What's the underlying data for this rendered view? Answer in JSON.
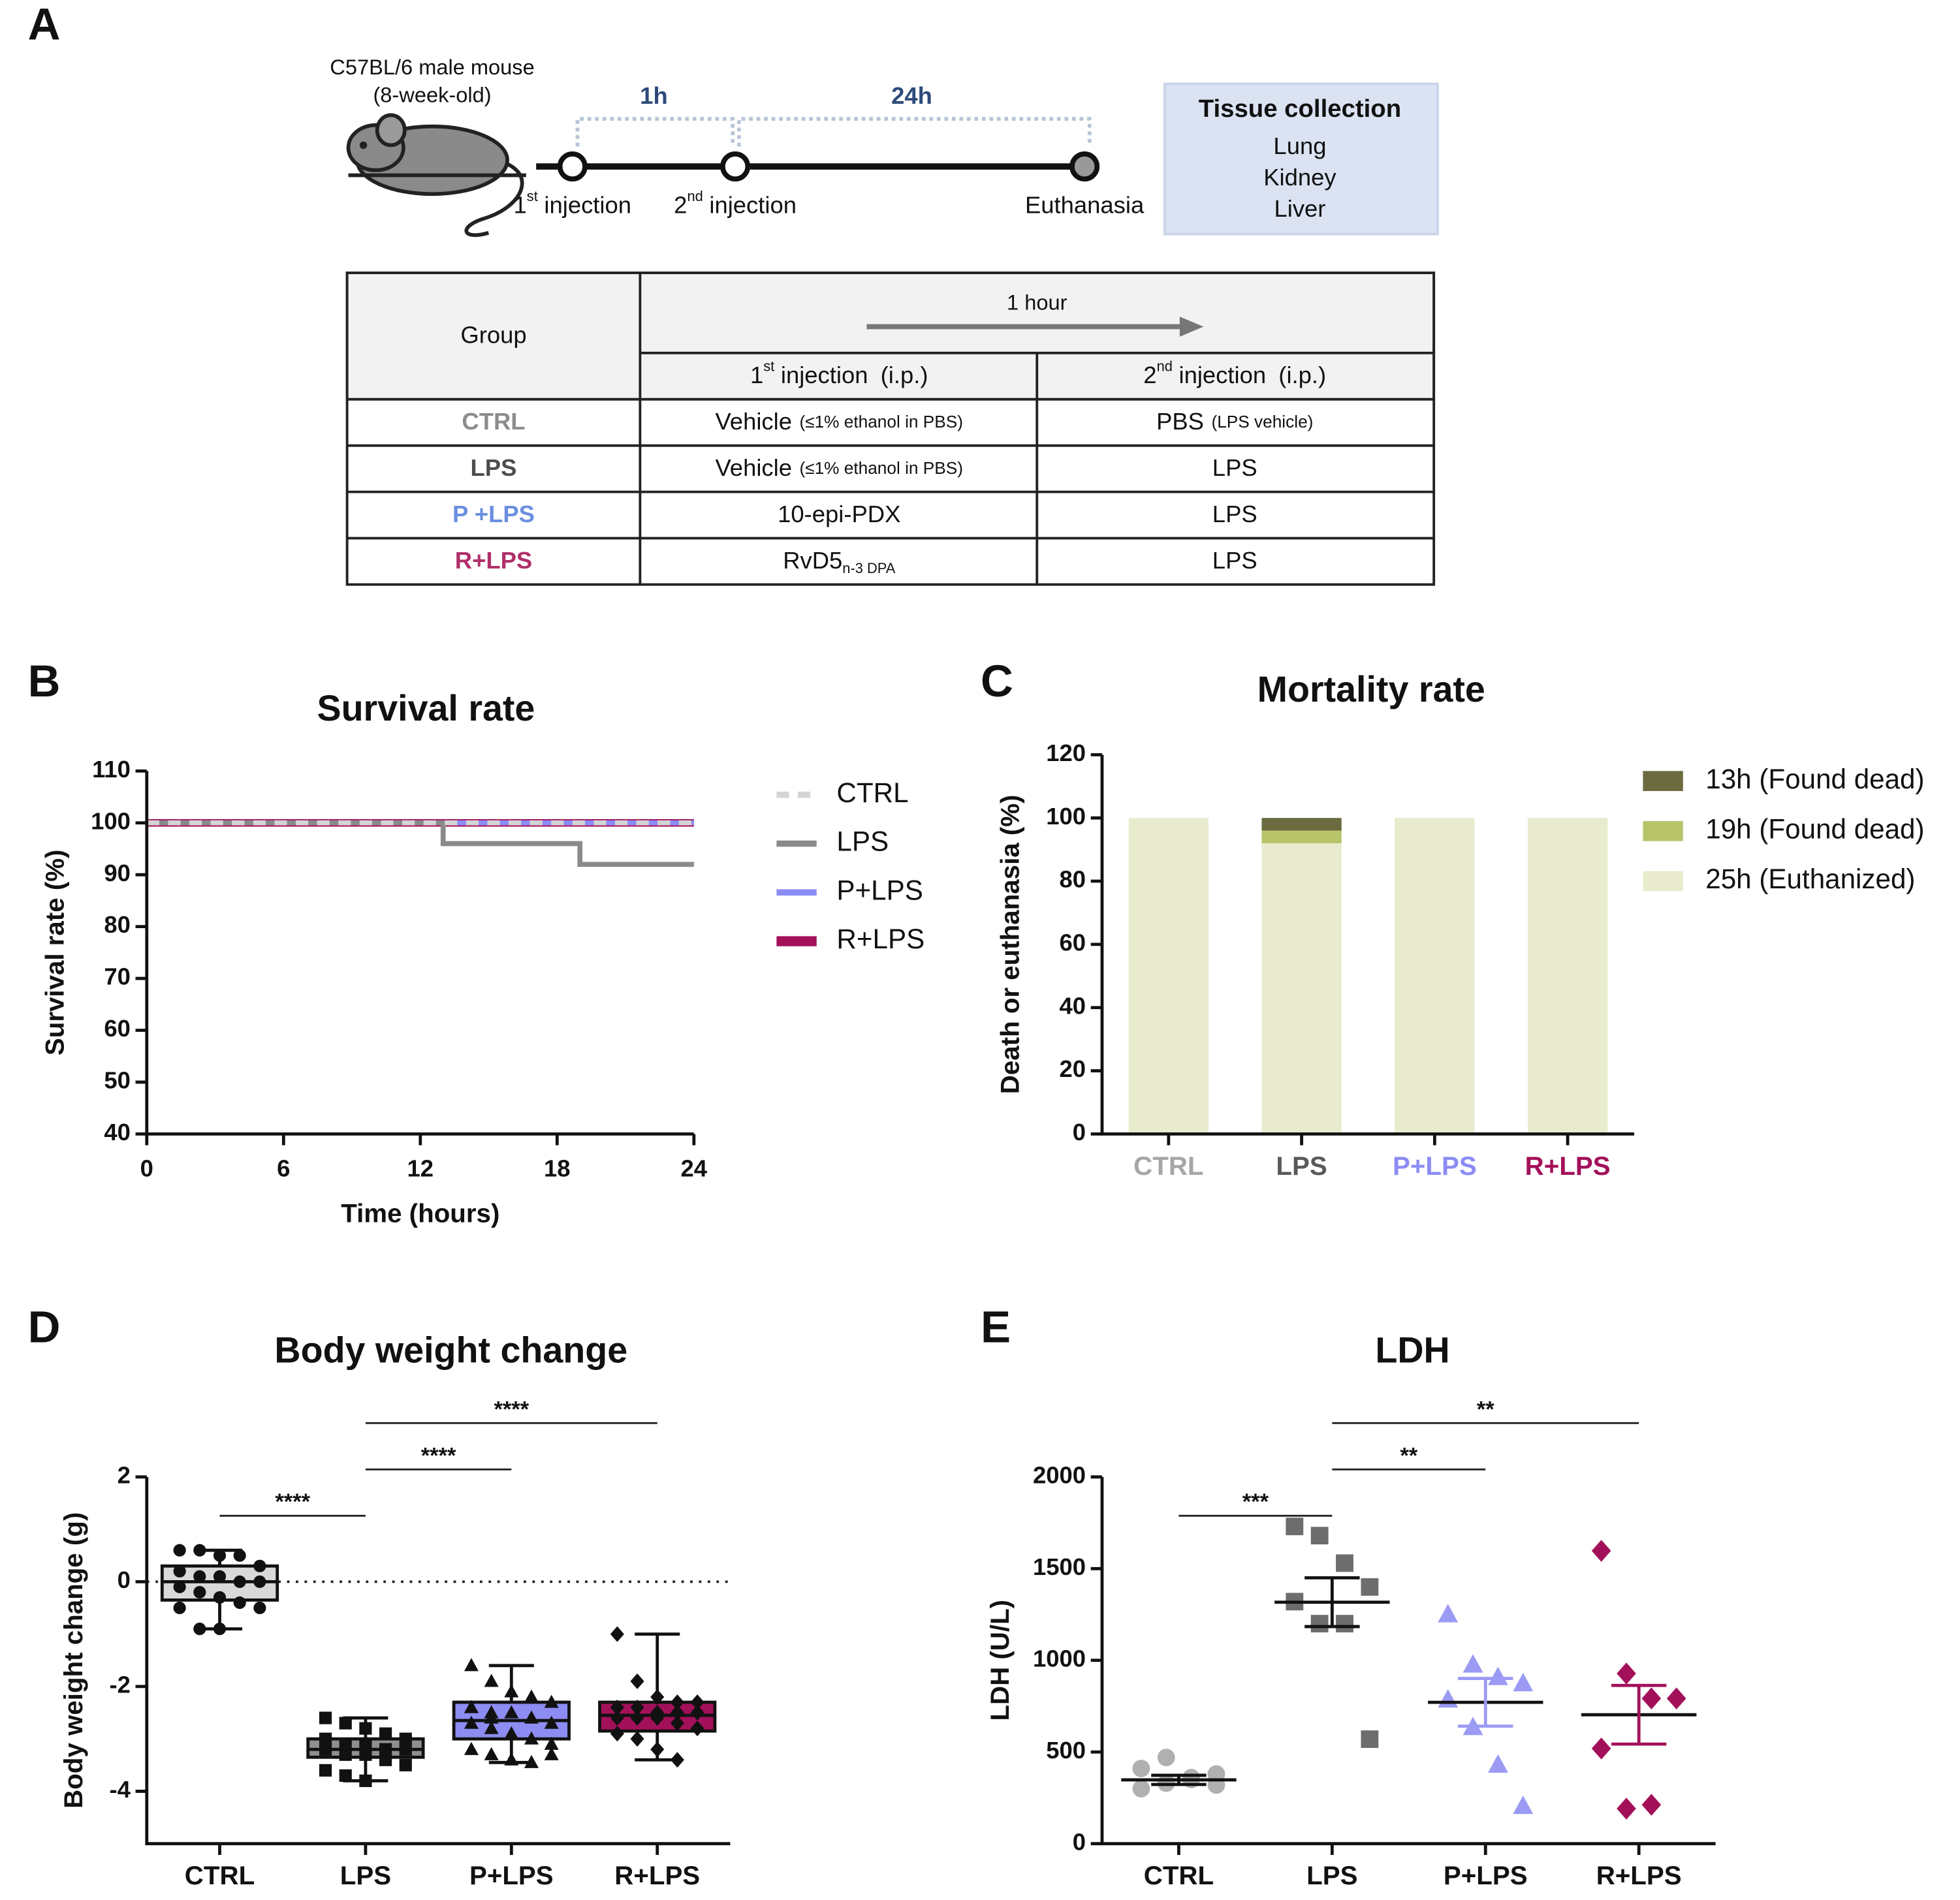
{
  "panel_a": {
    "label": "A",
    "mouse": [
      "C57BL/6 male mouse",
      "(8-week-old)"
    ],
    "intervals": [
      "1h",
      "24h"
    ],
    "events": [
      {
        "num": "1",
        "sup": "st",
        "text": "injection"
      },
      {
        "num": "2",
        "sup": "nd",
        "text": "injection"
      },
      {
        "text": "Euthanasia"
      }
    ],
    "tissue": {
      "title": "Tissue collection",
      "items": [
        "Lung",
        "Kidney",
        "Liver"
      ]
    },
    "table": {
      "group_header": "Group",
      "time": "1 hour",
      "columns": [
        {
          "num": "1",
          "sup": "st",
          "text": "injection",
          "note": "(i.p.)"
        },
        {
          "num": "2",
          "sup": "nd",
          "text": "injection",
          "note": "(i.p.)"
        }
      ],
      "rows": [
        [
          {
            "text": "CTRL",
            "color": "#8c8c8c"
          },
          {
            "text": "Vehicle",
            "small": "(≤1% ethanol in PBS)"
          },
          {
            "text": "PBS",
            "small": "(LPS vehicle)"
          }
        ],
        [
          {
            "text": "LPS",
            "color": "#4d4d4d"
          },
          {
            "text": "Vehicle",
            "small": "(≤1% ethanol in PBS)"
          },
          {
            "text": "LPS"
          }
        ],
        [
          {
            "text": "P +LPS",
            "color": "#6b8fe0"
          },
          {
            "text": "10-epi-PDX"
          },
          {
            "text": "LPS"
          }
        ],
        [
          {
            "text": "R+LPS",
            "color": "#b0306a"
          },
          {
            "text": "RvD5",
            "sub": "n-3 DPA"
          },
          {
            "text": "LPS"
          }
        ]
      ]
    }
  },
  "chart_data": [
    {
      "type": "line",
      "panel": "B",
      "title": "Survival rate",
      "x_label": "Time (hours)",
      "y_label": "Survival rate (%)",
      "x": [
        0,
        13,
        13,
        19,
        19,
        24
      ],
      "xlim": [
        0,
        24
      ],
      "xticks": [
        0,
        6,
        12,
        18,
        24
      ],
      "ylim": [
        40,
        110
      ],
      "yticks": [
        40,
        50,
        60,
        70,
        80,
        90,
        100,
        110
      ],
      "series": [
        {
          "name": "CTRL",
          "color": "#d4d4d4",
          "dash": true,
          "values": [
            100,
            100,
            100,
            100,
            100,
            100
          ]
        },
        {
          "name": "LPS",
          "color": "#8a8a8a",
          "dash": false,
          "values": [
            100,
            100,
            96,
            96,
            92,
            92
          ]
        },
        {
          "name": "P+LPS",
          "color": "#8c8cf5",
          "dash": false,
          "values": [
            100,
            100,
            100,
            100,
            100,
            100
          ]
        },
        {
          "name": "R+LPS",
          "color": "#a3105a",
          "dash": false,
          "values": [
            100,
            100,
            100,
            100,
            100,
            100
          ]
        }
      ]
    },
    {
      "type": "bar",
      "stacked": true,
      "panel": "C",
      "title": "Mortality rate",
      "y_label": "Death or euthanasia (%)",
      "categories": [
        "CTRL",
        "LPS",
        "P+LPS",
        "R+LPS"
      ],
      "category_colors": [
        "#a6a6a6",
        "#595959",
        "#8c8cf5",
        "#a3105a"
      ],
      "ylim": [
        0,
        120
      ],
      "yticks": [
        0,
        20,
        40,
        60,
        80,
        100,
        120
      ],
      "series": [
        {
          "name": "25h (Euthanized)",
          "color": "#e8ebcd",
          "values": [
            100,
            92,
            100,
            100
          ]
        },
        {
          "name": "19h (Found dead)",
          "color": "#b7c46a",
          "values": [
            0,
            4,
            0,
            0
          ]
        },
        {
          "name": "13h (Found dead)",
          "color": "#6b6b3f",
          "values": [
            0,
            4,
            0,
            0
          ]
        }
      ]
    },
    {
      "type": "box",
      "panel": "D",
      "title": "Body weight change",
      "y_label": "Body weight change (g)",
      "categories": [
        "CTRL",
        "LPS",
        "P+LPS",
        "R+LPS"
      ],
      "colors": [
        "#d9d9d9",
        "#8f8f8f",
        "#8c8cf2",
        "#a3105a"
      ],
      "markers": [
        "circle",
        "square",
        "triangle",
        "diamond"
      ],
      "ylim": [
        -5,
        2
      ],
      "yticks": [
        -4,
        -2,
        0,
        2
      ],
      "reference_line": 0,
      "boxes": [
        {
          "min": -0.9,
          "q1": -0.35,
          "median": 0.0,
          "q3": 0.3,
          "max": 0.6
        },
        {
          "min": -3.8,
          "q1": -3.35,
          "median": -3.2,
          "q3": -3.0,
          "max": -2.6
        },
        {
          "min": -3.45,
          "q1": -3.0,
          "median": -2.65,
          "q3": -2.3,
          "max": -1.6
        },
        {
          "min": -3.4,
          "q1": -2.85,
          "median": -2.55,
          "q3": -2.3,
          "max": -1.0
        }
      ],
      "points": [
        [
          0.6,
          0.6,
          0.5,
          0.5,
          0.3,
          0.2,
          0.1,
          0.1,
          0,
          0,
          -0.1,
          -0.2,
          -0.3,
          -0.4,
          -0.5,
          -0.5,
          -0.9,
          -0.9
        ],
        [
          -2.6,
          -2.7,
          -2.8,
          -2.9,
          -3.0,
          -3.0,
          -3.1,
          -3.1,
          -3.2,
          -3.2,
          -3.2,
          -3.3,
          -3.3,
          -3.4,
          -3.5,
          -3.6,
          -3.7,
          -3.8
        ],
        [
          -1.6,
          -1.9,
          -2.1,
          -2.2,
          -2.3,
          -2.4,
          -2.5,
          -2.5,
          -2.6,
          -2.7,
          -2.7,
          -2.8,
          -2.9,
          -3.0,
          -3.1,
          -3.2,
          -3.3,
          -3.4,
          -3.45,
          -3.3,
          -2.4,
          -2.6
        ],
        [
          -1.0,
          -1.9,
          -2.2,
          -2.3,
          -2.3,
          -2.4,
          -2.4,
          -2.5,
          -2.5,
          -2.5,
          -2.6,
          -2.6,
          -2.6,
          -2.7,
          -2.8,
          -2.9,
          -3.0,
          -3.2,
          -3.4
        ]
      ],
      "annotations": [
        {
          "from": 0,
          "to": 1,
          "label": "****"
        },
        {
          "from": 1,
          "to": 2,
          "label": "****"
        },
        {
          "from": 1,
          "to": 3,
          "label": "****"
        }
      ]
    },
    {
      "type": "dot",
      "panel": "E",
      "title": "LDH",
      "y_label": "LDH (U/L)",
      "categories": [
        "CTRL",
        "LPS",
        "P+LPS",
        "R+LPS"
      ],
      "colors": [
        "#b0b0b0",
        "#6d6d6d",
        "#9b9bf5",
        "#a3105a"
      ],
      "markers": [
        "circle",
        "square",
        "triangle",
        "diamond"
      ],
      "ylim": [
        0,
        2000
      ],
      "yticks": [
        0,
        500,
        1000,
        1500,
        2000
      ],
      "points": [
        [
          300,
          330,
          360,
          380,
          410,
          470,
          350,
          320
        ],
        [
          1730,
          1680,
          1530,
          1400,
          1320,
          1200,
          1200,
          570
        ],
        [
          1250,
          976,
          908,
          874,
          785,
          635,
          430,
          205
        ],
        [
          1597,
          928,
          792,
          792,
          519,
          191,
          212
        ]
      ],
      "means": [
        348,
        1317,
        771,
        703
      ],
      "sems": [
        25,
        133,
        130,
        160
      ],
      "annotations": [
        {
          "from": 0,
          "to": 1,
          "label": "***"
        },
        {
          "from": 1,
          "to": 2,
          "label": "**"
        },
        {
          "from": 1,
          "to": 3,
          "label": "**"
        }
      ]
    }
  ]
}
